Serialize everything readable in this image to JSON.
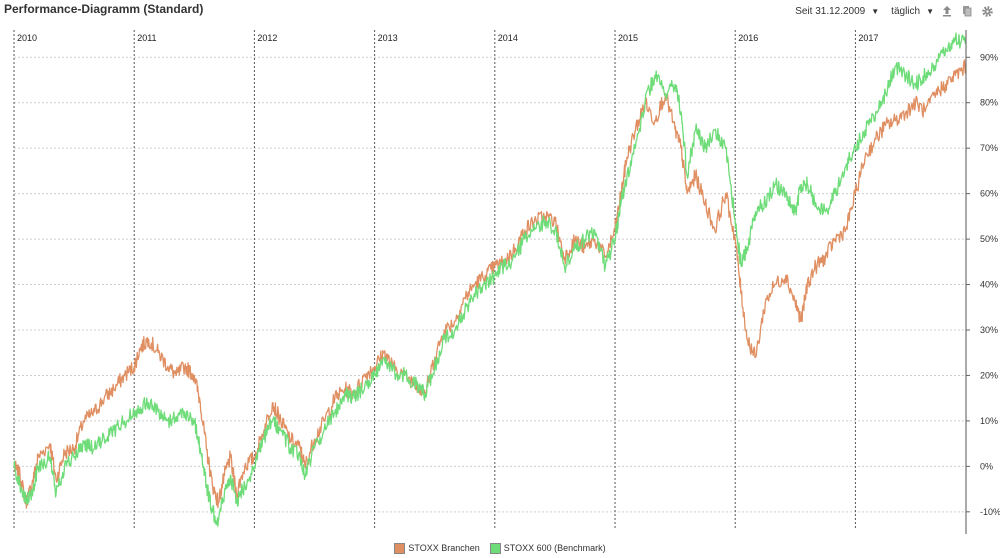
{
  "header": {
    "title": "Performance-Diagramm (Standard)",
    "since_label": "Seit 31.12.2009",
    "interval_label": "täglich",
    "icons": [
      "export-icon",
      "copy-icon",
      "gear-icon"
    ]
  },
  "colors": {
    "branchen": "#e08f62",
    "benchmark": "#6edc78",
    "grid": "#cfcfcf",
    "year_line": "#555555"
  },
  "chart_data": {
    "type": "line",
    "title": "Performance-Diagramm (Standard)",
    "xlabel": "",
    "ylabel": "",
    "x_range": [
      2010.0,
      2017.92
    ],
    "ylim": [
      -14,
      96
    ],
    "y_ticks": [
      -10,
      0,
      10,
      20,
      30,
      40,
      50,
      60,
      70,
      80,
      90
    ],
    "y_tick_labels": [
      "-10%",
      "0%",
      "10%",
      "20%",
      "30%",
      "40%",
      "50%",
      "60%",
      "70%",
      "80%",
      "90%"
    ],
    "year_labels": [
      "2010",
      "2011",
      "2012",
      "2013",
      "2014",
      "2015",
      "2016",
      "2017"
    ],
    "grid": true,
    "y_axis_position": "right",
    "legend_position": "bottom-center",
    "series": [
      {
        "name": "STOXX Branchen",
        "x": [
          2010.0,
          2010.05,
          2010.1,
          2010.15,
          2010.2,
          2010.3,
          2010.35,
          2010.42,
          2010.5,
          2010.58,
          2010.67,
          2010.75,
          2010.83,
          2010.92,
          2011.0,
          2011.05,
          2011.12,
          2011.2,
          2011.28,
          2011.35,
          2011.42,
          2011.5,
          2011.55,
          2011.6,
          2011.65,
          2011.7,
          2011.75,
          2011.8,
          2011.85,
          2011.92,
          2012.0,
          2012.08,
          2012.15,
          2012.22,
          2012.3,
          2012.38,
          2012.42,
          2012.5,
          2012.58,
          2012.67,
          2012.75,
          2012.83,
          2012.92,
          2013.0,
          2013.08,
          2013.15,
          2013.25,
          2013.35,
          2013.42,
          2013.5,
          2013.58,
          2013.67,
          2013.75,
          2013.83,
          2013.92,
          2014.0,
          2014.08,
          2014.17,
          2014.25,
          2014.33,
          2014.42,
          2014.5,
          2014.58,
          2014.67,
          2014.75,
          2014.83,
          2014.92,
          2015.0,
          2015.05,
          2015.1,
          2015.17,
          2015.25,
          2015.33,
          2015.42,
          2015.5,
          2015.55,
          2015.6,
          2015.67,
          2015.75,
          2015.83,
          2015.92,
          2016.0,
          2016.05,
          2016.1,
          2016.17,
          2016.25,
          2016.33,
          2016.42,
          2016.5,
          2016.55,
          2016.6,
          2016.67,
          2016.75,
          2016.83,
          2016.92,
          2017.0,
          2017.08,
          2017.17,
          2017.25,
          2017.33,
          2017.42,
          2017.5,
          2017.58,
          2017.67,
          2017.75,
          2017.83,
          2017.92
        ],
        "values": [
          0,
          -2,
          -8,
          -4,
          2,
          5,
          -3,
          3,
          4,
          10,
          12,
          15,
          17,
          20,
          22,
          26,
          28,
          25,
          22,
          20,
          22,
          20,
          14,
          4,
          -4,
          -8,
          -2,
          2,
          -6,
          0,
          2,
          8,
          14,
          10,
          6,
          4,
          0,
          6,
          10,
          15,
          17,
          16,
          20,
          22,
          25,
          22,
          20,
          18,
          16,
          24,
          30,
          32,
          37,
          40,
          42,
          44,
          45,
          48,
          52,
          54,
          55,
          54,
          46,
          50,
          48,
          50,
          46,
          52,
          60,
          68,
          74,
          80,
          76,
          82,
          74,
          70,
          60,
          64,
          58,
          52,
          60,
          50,
          38,
          28,
          24,
          36,
          40,
          42,
          36,
          32,
          40,
          44,
          46,
          50,
          52,
          60,
          68,
          72,
          75,
          76,
          78,
          80,
          78,
          82,
          84,
          86,
          88
        ],
        "color_key": "branchen"
      },
      {
        "name": "STOXX 600 (Benchmark)",
        "x": [
          2010.0,
          2010.05,
          2010.1,
          2010.15,
          2010.2,
          2010.3,
          2010.35,
          2010.42,
          2010.5,
          2010.58,
          2010.67,
          2010.75,
          2010.83,
          2010.92,
          2011.0,
          2011.05,
          2011.12,
          2011.2,
          2011.28,
          2011.35,
          2011.42,
          2011.5,
          2011.55,
          2011.6,
          2011.65,
          2011.7,
          2011.75,
          2011.8,
          2011.85,
          2011.92,
          2012.0,
          2012.08,
          2012.15,
          2012.22,
          2012.3,
          2012.38,
          2012.42,
          2012.5,
          2012.58,
          2012.67,
          2012.75,
          2012.83,
          2012.92,
          2013.0,
          2013.08,
          2013.15,
          2013.25,
          2013.35,
          2013.42,
          2013.5,
          2013.58,
          2013.67,
          2013.75,
          2013.83,
          2013.92,
          2014.0,
          2014.08,
          2014.17,
          2014.25,
          2014.33,
          2014.42,
          2014.5,
          2014.58,
          2014.67,
          2014.75,
          2014.83,
          2014.92,
          2015.0,
          2015.05,
          2015.1,
          2015.17,
          2015.25,
          2015.33,
          2015.42,
          2015.5,
          2015.55,
          2015.6,
          2015.67,
          2015.75,
          2015.83,
          2015.92,
          2016.0,
          2016.05,
          2016.1,
          2016.17,
          2016.25,
          2016.33,
          2016.42,
          2016.5,
          2016.55,
          2016.6,
          2016.67,
          2016.75,
          2016.83,
          2016.92,
          2017.0,
          2017.08,
          2017.17,
          2017.25,
          2017.33,
          2017.42,
          2017.5,
          2017.58,
          2017.67,
          2017.75,
          2017.83,
          2017.92
        ],
        "values": [
          0,
          -4,
          -8,
          -6,
          0,
          2,
          -6,
          0,
          2,
          5,
          4,
          6,
          8,
          10,
          12,
          13,
          14,
          12,
          10,
          11,
          12,
          10,
          4,
          -4,
          -10,
          -12,
          -6,
          -2,
          -8,
          -4,
          0,
          6,
          10,
          8,
          4,
          2,
          -2,
          4,
          8,
          12,
          16,
          15,
          18,
          20,
          24,
          21,
          20,
          18,
          16,
          22,
          28,
          30,
          34,
          38,
          40,
          42,
          44,
          46,
          50,
          52,
          54,
          52,
          44,
          48,
          50,
          52,
          44,
          50,
          58,
          64,
          70,
          80,
          86,
          82,
          84,
          78,
          64,
          74,
          70,
          74,
          70,
          54,
          44,
          48,
          56,
          58,
          62,
          60,
          56,
          62,
          62,
          58,
          56,
          60,
          66,
          70,
          74,
          78,
          82,
          88,
          86,
          84,
          86,
          88,
          92,
          94,
          93
        ],
        "color_key": "benchmark"
      }
    ]
  }
}
